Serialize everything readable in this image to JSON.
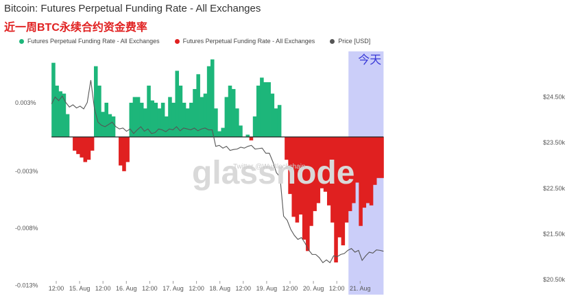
{
  "header": {
    "title": "Bitcoin: Futures Perpetual Funding Rate - All Exchanges",
    "subtitle": "近一周BTC永续合约资金费率"
  },
  "legend": [
    {
      "label": "Futures Perpetual Funding Rate - All Exchanges",
      "color": "#1db67a"
    },
    {
      "label": "Futures Perpetual Funding Rate - All Exchanges",
      "color": "#e02020"
    },
    {
      "label": "Price [USD]",
      "color": "#555555"
    }
  ],
  "watermark": {
    "text": "glassnode",
    "sub": "Twitter @WuBlockchain"
  },
  "annotation": {
    "label": "今天"
  },
  "chart_data": {
    "type": "area",
    "x_ticks": [
      "12:00",
      "15. Aug",
      "12:00",
      "16. Aug",
      "12:00",
      "17. Aug",
      "12:00",
      "18. Aug",
      "12:00",
      "19. Aug",
      "12:00",
      "20. Aug",
      "12:00",
      "21. Aug"
    ],
    "y_left_ticks": [
      "0.003%",
      "-0.003%",
      "-0.008%",
      "-0.013%"
    ],
    "y_left_range": [
      -0.0125,
      0.0075
    ],
    "y_right_ticks": [
      "$24.50k",
      "$23.50k",
      "$22.50k",
      "$21.50k",
      "$20.50k"
    ],
    "y_right_range": [
      20500,
      25500
    ],
    "highlight_region": {
      "from_tick": 12.5,
      "to_tick": 14.0,
      "color": "#b9bdf7"
    },
    "series": [
      {
        "name": "Futures Perpetual Funding Rate - All Exchanges",
        "axis": "left",
        "unit": "%",
        "positive_color": "#1db67a",
        "negative_color": "#e02020",
        "x_range": [
          -0.2,
          14.0
        ],
        "values": [
          0.0065,
          0.0045,
          0.004,
          0.0038,
          0.002,
          0.0,
          -0.0012,
          -0.0015,
          -0.0018,
          -0.0022,
          -0.002,
          -0.0012,
          0.0062,
          0.0045,
          0.0022,
          0.003,
          0.002,
          0.0018,
          0.0,
          -0.0025,
          -0.003,
          -0.0022,
          0.003,
          0.0035,
          0.0035,
          0.003,
          0.0025,
          0.0045,
          0.0032,
          0.003,
          0.0025,
          0.003,
          0.0018,
          0.0035,
          0.003,
          0.0058,
          0.0045,
          0.003,
          0.0025,
          0.003,
          0.0042,
          0.0055,
          0.0035,
          0.0038,
          0.0062,
          0.0068,
          0.0025,
          0.0005,
          0.0008,
          0.0035,
          0.0045,
          0.0042,
          0.0025,
          0.001,
          0.0,
          0.0002,
          -0.0003,
          0.0018,
          0.0045,
          0.0052,
          0.0048,
          0.0048,
          0.0038,
          0.0025,
          0.0028,
          0.0,
          -0.002,
          -0.005,
          -0.007,
          -0.0075,
          -0.0068,
          -0.009,
          -0.01,
          -0.0078,
          -0.0065,
          -0.0058,
          -0.0045,
          -0.0048,
          -0.006,
          -0.0075,
          -0.011,
          -0.0088,
          -0.0095,
          -0.0075,
          -0.0065,
          -0.0058,
          -0.004,
          -0.0078,
          -0.0062,
          -0.0058,
          -0.006,
          -0.0042,
          -0.0036,
          -0.0036
        ]
      },
      {
        "name": "Price [USD]",
        "axis": "right",
        "unit": "USD",
        "color": "#555555",
        "x_range": [
          -0.2,
          14.0
        ],
        "values": [
          24350,
          24500,
          24420,
          24520,
          24380,
          24280,
          24330,
          24260,
          24300,
          24240,
          24380,
          24870,
          24250,
          23950,
          23880,
          23850,
          23900,
          23950,
          23850,
          23800,
          23820,
          23750,
          23800,
          23700,
          23780,
          23850,
          23750,
          23800,
          23700,
          23720,
          23800,
          23780,
          23740,
          23800,
          23780,
          23850,
          23760,
          23820,
          23800,
          23780,
          23820,
          23760,
          23800,
          23820,
          23780,
          23780,
          23420,
          23440,
          23380,
          23420,
          23330,
          23350,
          23360,
          23400,
          23380,
          23420,
          23440,
          23360,
          23370,
          23380,
          23270,
          23270,
          23080,
          22840,
          22750,
          21890,
          21800,
          21600,
          21470,
          21380,
          21420,
          21300,
          21150,
          21050,
          21050,
          20980,
          20870,
          20930,
          20870,
          21020,
          21000,
          21050,
          21070,
          21140,
          21180,
          21100,
          21140,
          20920,
          21020,
          21100,
          21080,
          21150,
          21140,
          21120
        ]
      }
    ]
  }
}
